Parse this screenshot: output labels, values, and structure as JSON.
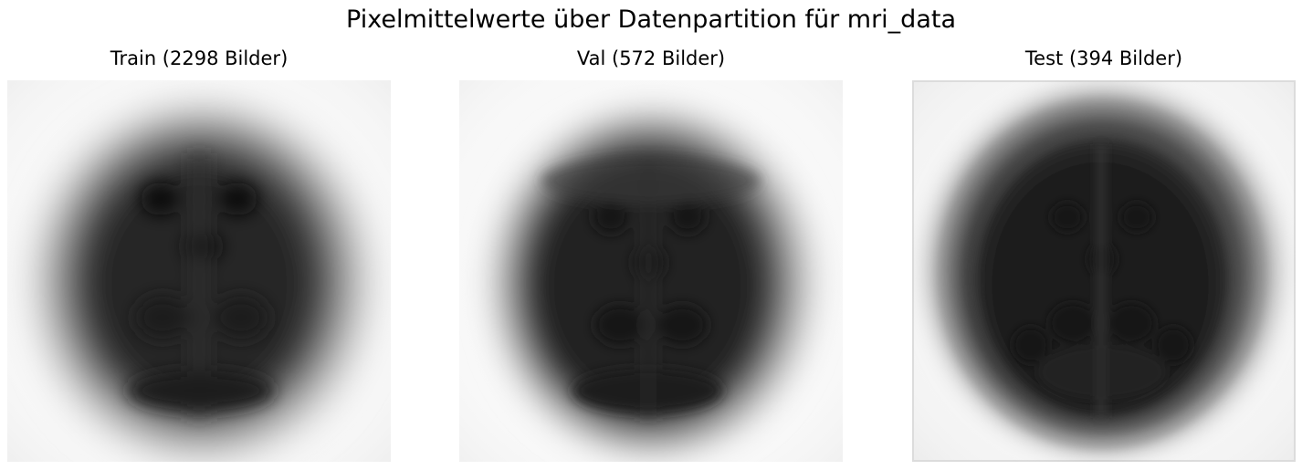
{
  "figure": {
    "title": "Pixelmittelwerte über Datenpartition für mri_data"
  },
  "panels": [
    {
      "title": "Train (2298 Bilder)",
      "image": "mean-brain-mri-train"
    },
    {
      "title": "Val (572 Bilder)",
      "image": "mean-brain-mri-val"
    },
    {
      "title": "Test (394 Bilder)",
      "image": "mean-brain-mri-test"
    }
  ]
}
